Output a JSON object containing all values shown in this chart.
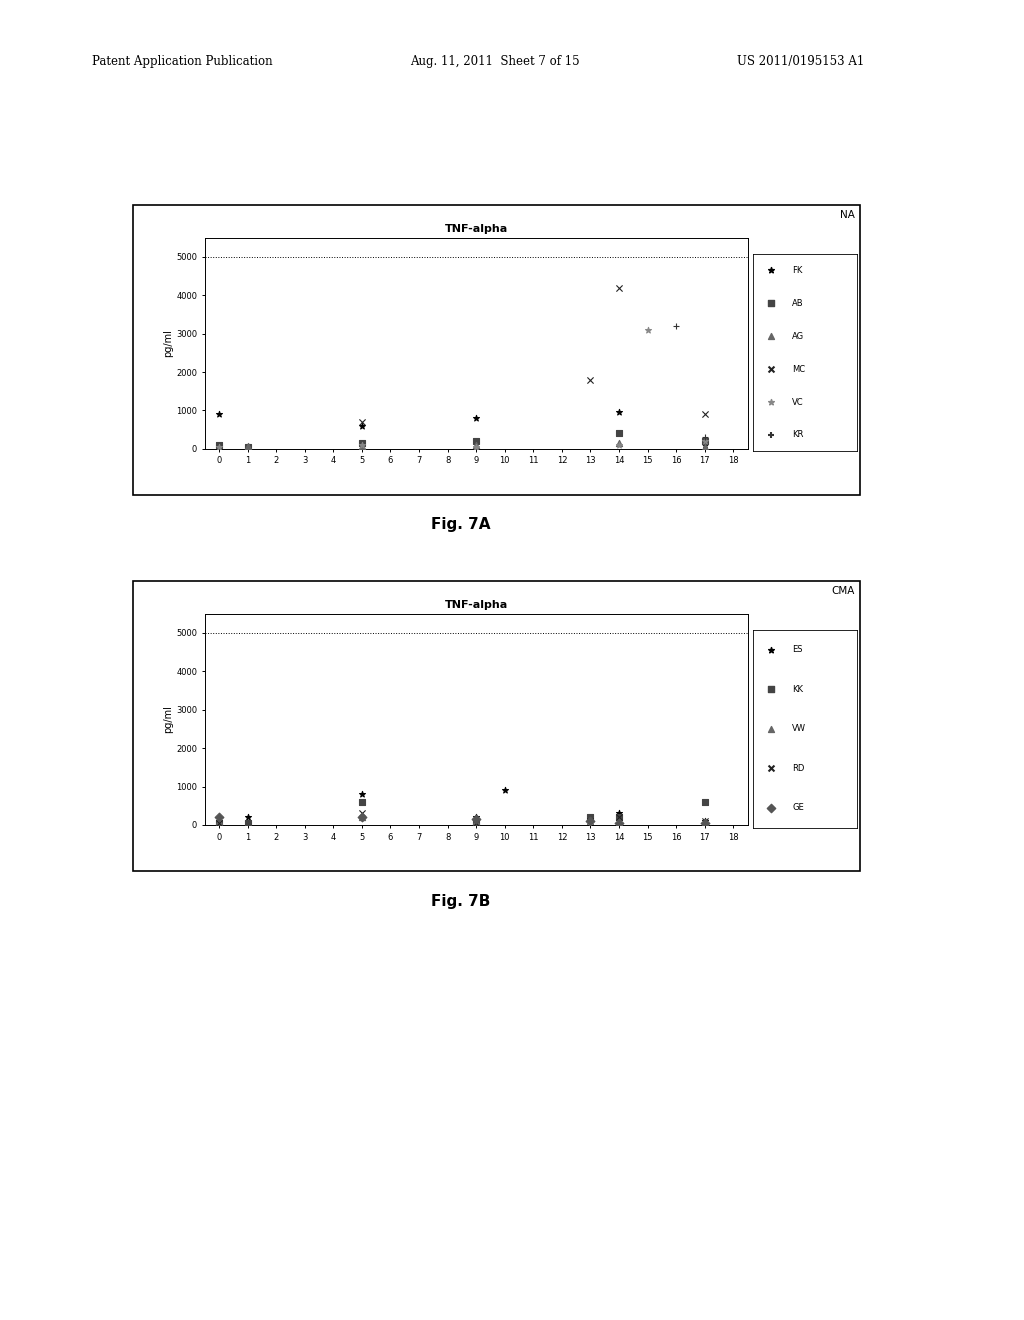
{
  "fig7a": {
    "title": "TNF-alpha",
    "group_label": "NA",
    "ylabel": "pg/ml",
    "xlabel_ticks": [
      0,
      1,
      2,
      3,
      4,
      5,
      6,
      7,
      8,
      9,
      10,
      11,
      12,
      13,
      14,
      15,
      16,
      17,
      18
    ],
    "ylim": [
      0,
      5500
    ],
    "yticks": [
      0,
      1000,
      2000,
      3000,
      4000,
      5000
    ],
    "dashed_line_y": 5000,
    "series": [
      {
        "name": "FK",
        "marker": "*",
        "color": "#000000",
        "points": [
          [
            0,
            900
          ],
          [
            5,
            600
          ],
          [
            9,
            800
          ],
          [
            14,
            950
          ],
          [
            17,
            100
          ]
        ]
      },
      {
        "name": "AB",
        "marker": "s",
        "color": "#444444",
        "points": [
          [
            0,
            100
          ],
          [
            1,
            50
          ],
          [
            5,
            150
          ],
          [
            9,
            200
          ],
          [
            14,
            400
          ],
          [
            17,
            200
          ]
        ]
      },
      {
        "name": "AG",
        "marker": "^",
        "color": "#666666",
        "points": [
          [
            1,
            80
          ],
          [
            5,
            80
          ],
          [
            9,
            100
          ],
          [
            14,
            150
          ],
          [
            17,
            50
          ]
        ]
      },
      {
        "name": "MC",
        "marker": "x",
        "color": "#222222",
        "points": [
          [
            5,
            700
          ],
          [
            13,
            1800
          ],
          [
            14,
            4200
          ],
          [
            17,
            900
          ]
        ]
      },
      {
        "name": "VC",
        "marker": "*",
        "color": "#888888",
        "points": [
          [
            0,
            50
          ],
          [
            5,
            100
          ],
          [
            9,
            50
          ],
          [
            14,
            100
          ],
          [
            15,
            3100
          ],
          [
            17,
            200
          ]
        ]
      },
      {
        "name": "KR",
        "marker": "+",
        "color": "#333333",
        "points": [
          [
            16,
            3200
          ],
          [
            17,
            300
          ]
        ]
      }
    ]
  },
  "fig7b": {
    "title": "TNF-alpha",
    "group_label": "CMA",
    "ylabel": "pg/ml",
    "xlabel_ticks": [
      0,
      1,
      2,
      3,
      4,
      5,
      6,
      7,
      8,
      9,
      10,
      11,
      12,
      13,
      14,
      15,
      16,
      17,
      18
    ],
    "ylim": [
      0,
      5500
    ],
    "yticks": [
      0,
      1000,
      2000,
      3000,
      4000,
      5000
    ],
    "dashed_line_y": 5000,
    "series": [
      {
        "name": "ES",
        "marker": "*",
        "color": "#000000",
        "points": [
          [
            0,
            100
          ],
          [
            1,
            200
          ],
          [
            5,
            800
          ],
          [
            9,
            200
          ],
          [
            10,
            900
          ],
          [
            14,
            300
          ],
          [
            17,
            100
          ]
        ]
      },
      {
        "name": "KK",
        "marker": "s",
        "color": "#444444",
        "points": [
          [
            0,
            50
          ],
          [
            1,
            50
          ],
          [
            5,
            600
          ],
          [
            9,
            50
          ],
          [
            13,
            200
          ],
          [
            14,
            200
          ],
          [
            17,
            600
          ]
        ]
      },
      {
        "name": "VW",
        "marker": "^",
        "color": "#666666",
        "points": [
          [
            0,
            100
          ],
          [
            5,
            200
          ],
          [
            9,
            100
          ],
          [
            14,
            50
          ],
          [
            17,
            50
          ]
        ]
      },
      {
        "name": "RD",
        "marker": "x",
        "color": "#222222",
        "points": [
          [
            0,
            50
          ],
          [
            5,
            300
          ],
          [
            9,
            50
          ],
          [
            13,
            100
          ],
          [
            14,
            200
          ],
          [
            17,
            100
          ]
        ]
      },
      {
        "name": "GE",
        "marker": "D",
        "color": "#555555",
        "points": [
          [
            0,
            200
          ],
          [
            5,
            200
          ],
          [
            9,
            150
          ],
          [
            13,
            100
          ],
          [
            14,
            50
          ],
          [
            17,
            50
          ]
        ]
      }
    ]
  },
  "header": {
    "left_text": "Patent Application Publication",
    "middle_text": "Aug. 11, 2011  Sheet 7 of 15",
    "right_text": "US 2011/0195153 A1"
  },
  "fig7a_label": "Fig. 7A",
  "fig7b_label": "Fig. 7B",
  "background_color": "#ffffff",
  "chart_bg": "#ffffff"
}
